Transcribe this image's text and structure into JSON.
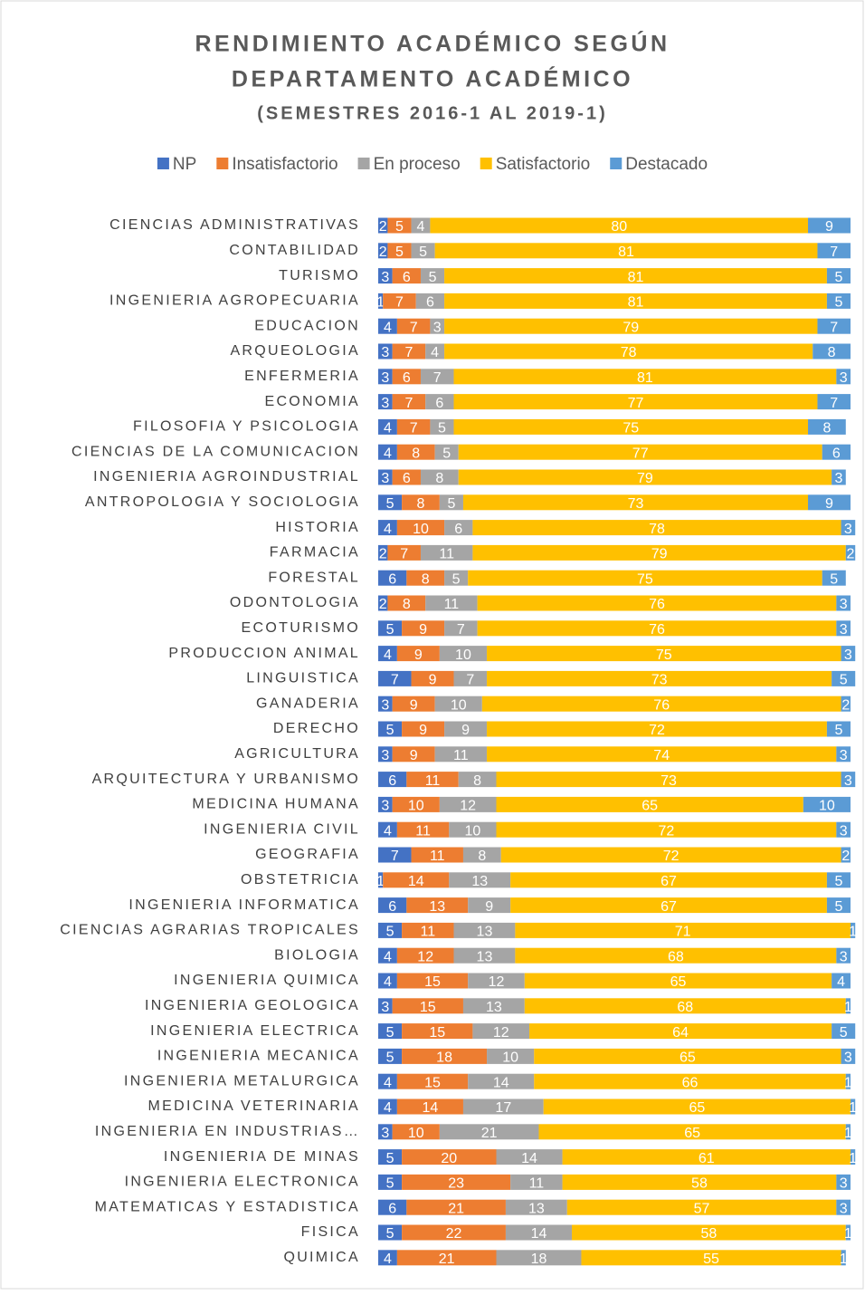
{
  "chart_data": {
    "type": "stacked-bar-horizontal",
    "title": [
      "RENDIMIENTO ACADÉMICO SEGÚN",
      "DEPARTAMENTO ACADÉMICO"
    ],
    "subtitle": "(SEMESTRES 2016-1 AL 2019-1)",
    "categories": [
      "CIENCIAS ADMINISTRATIVAS",
      "CONTABILIDAD",
      "TURISMO",
      "INGENIERIA AGROPECUARIA",
      "EDUCACION",
      "ARQUEOLOGIA",
      "ENFERMERIA",
      "ECONOMIA",
      "FILOSOFIA Y PSICOLOGIA",
      "CIENCIAS DE LA COMUNICACION",
      "INGENIERIA AGROINDUSTRIAL",
      "ANTROPOLOGIA Y SOCIOLOGIA",
      "HISTORIA",
      "FARMACIA",
      "FORESTAL",
      "ODONTOLOGIA",
      "ECOTURISMO",
      "PRODUCCION ANIMAL",
      "LINGUISTICA",
      "GANADERIA",
      "DERECHO",
      "AGRICULTURA",
      "ARQUITECTURA Y URBANISMO",
      "MEDICINA HUMANA",
      "INGENIERIA CIVIL",
      "GEOGRAFIA",
      "OBSTETRICIA",
      "INGENIERIA INFORMATICA",
      "CIENCIAS AGRARIAS TROPICALES",
      "BIOLOGIA",
      "INGENIERIA QUIMICA",
      "INGENIERIA GEOLOGICA",
      "INGENIERIA ELECTRICA",
      "INGENIERIA MECANICA",
      "INGENIERIA METALURGICA",
      "MEDICINA VETERINARIA",
      "INGENIERIA EN INDUSTRIAS…",
      "INGENIERIA DE MINAS",
      "INGENIERIA ELECTRONICA",
      "MATEMATICAS Y ESTADISTICA",
      "FISICA",
      "QUIMICA"
    ],
    "series": [
      {
        "name": "NP",
        "color": "#4472c4",
        "values": [
          2,
          2,
          3,
          1,
          4,
          3,
          3,
          3,
          4,
          4,
          3,
          5,
          4,
          2,
          6,
          2,
          5,
          4,
          7,
          3,
          5,
          3,
          6,
          3,
          4,
          7,
          1,
          6,
          5,
          4,
          4,
          3,
          5,
          5,
          4,
          4,
          3,
          5,
          5,
          6,
          5,
          4
        ]
      },
      {
        "name": "Insatisfactorio",
        "color": "#ed7d31",
        "values": [
          5,
          5,
          6,
          7,
          7,
          7,
          6,
          7,
          7,
          8,
          6,
          8,
          10,
          7,
          8,
          8,
          9,
          9,
          9,
          9,
          9,
          9,
          11,
          10,
          11,
          11,
          14,
          13,
          11,
          12,
          15,
          15,
          15,
          18,
          15,
          14,
          10,
          20,
          23,
          21,
          22,
          21
        ]
      },
      {
        "name": "En proceso",
        "color": "#a5a5a5",
        "values": [
          4,
          5,
          5,
          6,
          3,
          4,
          7,
          6,
          5,
          5,
          8,
          5,
          6,
          11,
          5,
          11,
          7,
          10,
          7,
          10,
          9,
          11,
          8,
          12,
          10,
          8,
          13,
          9,
          13,
          13,
          12,
          13,
          12,
          10,
          14,
          17,
          21,
          14,
          11,
          13,
          14,
          18
        ]
      },
      {
        "name": "Satisfactorio",
        "color": "#ffc000",
        "values": [
          80,
          81,
          81,
          81,
          79,
          78,
          81,
          77,
          75,
          77,
          79,
          73,
          78,
          79,
          75,
          76,
          76,
          75,
          73,
          76,
          72,
          74,
          73,
          65,
          72,
          72,
          67,
          67,
          71,
          68,
          65,
          68,
          64,
          65,
          66,
          65,
          65,
          61,
          58,
          57,
          58,
          55
        ]
      },
      {
        "name": "Destacado",
        "color": "#5b9bd5",
        "values": [
          9,
          7,
          5,
          5,
          7,
          8,
          3,
          7,
          8,
          6,
          3,
          9,
          3,
          2,
          5,
          3,
          3,
          3,
          5,
          2,
          5,
          3,
          3,
          10,
          3,
          2,
          5,
          5,
          1,
          3,
          4,
          1,
          5,
          3,
          1,
          1,
          1,
          1,
          3,
          3,
          1,
          1
        ]
      }
    ],
    "xlim": [
      0,
      100
    ],
    "legend": "top"
  }
}
